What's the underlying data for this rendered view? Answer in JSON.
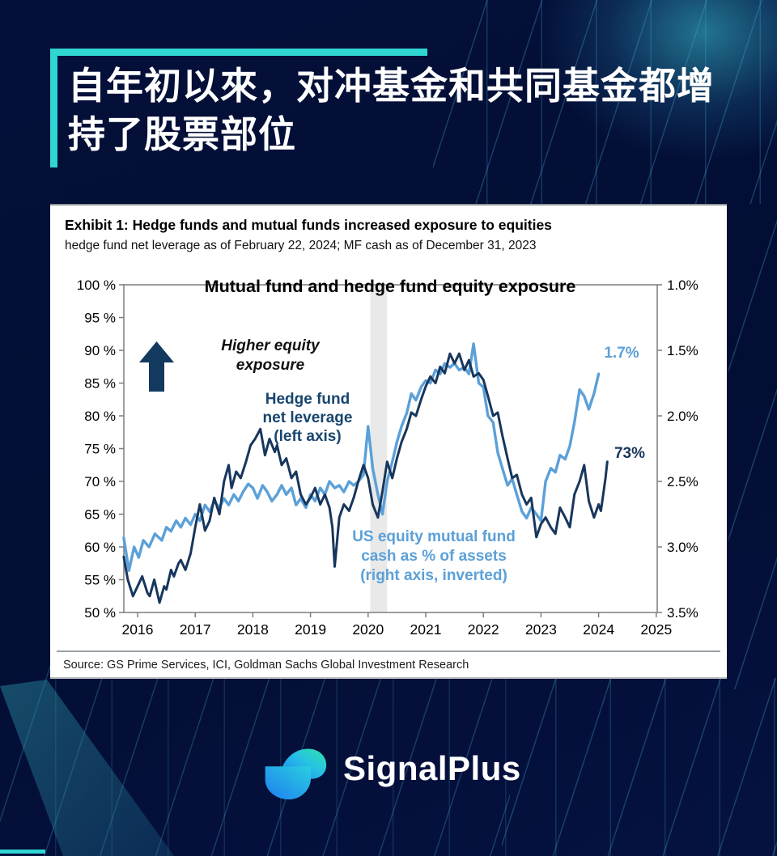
{
  "header": {
    "title_line1": "自年初以來，对冲基金和共同基金都增",
    "title_line2": "持了股票部位"
  },
  "exhibit": {
    "title": "Exhibit 1: Hedge funds and mutual funds increased exposure to equities",
    "subtitle": "hedge fund net leverage as of February 22, 2024; MF cash as of December 31, 2023",
    "source": "Source: GS Prime Services, ICI, Goldman Sachs Global Investment Research"
  },
  "logo": {
    "text": "SignalPlus"
  },
  "colors": {
    "accent_cyan": "#2fd6d2",
    "navy_series": "#17365d",
    "blue_series": "#5ba0d8",
    "recession_band": "#e9e9e9",
    "axis": "#7d7d7d",
    "background": "#04103a"
  },
  "chart_data": {
    "type": "line",
    "title": "Mutual fund and hedge fund equity exposure",
    "left_axis": {
      "tick_labels": [
        "100 %",
        "95 %",
        "90 %",
        "85 %",
        "80 %",
        "75 %",
        "70 %",
        "65 %",
        "60 %",
        "55 %",
        "50 %"
      ],
      "range": [
        50,
        100
      ]
    },
    "right_axis": {
      "tick_labels": [
        "1.0%",
        "1.5%",
        "2.0%",
        "2.5%",
        "3.0%",
        "3.5%"
      ],
      "range": [
        1.0,
        3.5
      ],
      "inverted": true
    },
    "x_axis": {
      "tick_labels": [
        "2016",
        "2017",
        "2018",
        "2019",
        "2020",
        "2021",
        "2022",
        "2023",
        "2024",
        "2025"
      ],
      "tick_years": [
        2016,
        2017,
        2018,
        2019,
        2020,
        2021,
        2022,
        2023,
        2024,
        2025
      ],
      "range": [
        2015.76,
        2025.05
      ]
    },
    "recession_band": {
      "x0": 2020.04,
      "x1": 2020.33
    },
    "annotations": {
      "higher_equity": [
        "Higher equity",
        "exposure"
      ],
      "hedge_fund": [
        "Hedge fund",
        "net leverage",
        "(left axis)"
      ],
      "mf_cash": [
        "US equity mutual fund",
        "cash as % of assets",
        "(right axis, inverted)"
      ],
      "mf_end_value": "1.7%",
      "hedge_end_value": "73%"
    },
    "series": [
      {
        "name": "US equity mutual fund cash as % of assets (right axis, inverted)",
        "axis": "right",
        "color": "#5ba0d8",
        "points": [
          [
            2015.76,
            2.93
          ],
          [
            2015.85,
            3.18
          ],
          [
            2015.94,
            3.0
          ],
          [
            2016.02,
            3.08
          ],
          [
            2016.1,
            2.95
          ],
          [
            2016.2,
            3.0
          ],
          [
            2016.3,
            2.9
          ],
          [
            2016.42,
            2.95
          ],
          [
            2016.5,
            2.85
          ],
          [
            2016.58,
            2.88
          ],
          [
            2016.67,
            2.8
          ],
          [
            2016.75,
            2.85
          ],
          [
            2016.83,
            2.78
          ],
          [
            2016.92,
            2.83
          ],
          [
            2017.0,
            2.75
          ],
          [
            2017.08,
            2.8
          ],
          [
            2017.17,
            2.68
          ],
          [
            2017.25,
            2.73
          ],
          [
            2017.33,
            2.65
          ],
          [
            2017.42,
            2.7
          ],
          [
            2017.5,
            2.63
          ],
          [
            2017.58,
            2.68
          ],
          [
            2017.67,
            2.6
          ],
          [
            2017.75,
            2.65
          ],
          [
            2017.83,
            2.58
          ],
          [
            2017.92,
            2.52
          ],
          [
            2018.0,
            2.55
          ],
          [
            2018.08,
            2.63
          ],
          [
            2018.17,
            2.53
          ],
          [
            2018.25,
            2.58
          ],
          [
            2018.33,
            2.65
          ],
          [
            2018.42,
            2.6
          ],
          [
            2018.5,
            2.53
          ],
          [
            2018.58,
            2.6
          ],
          [
            2018.67,
            2.55
          ],
          [
            2018.75,
            2.68
          ],
          [
            2018.83,
            2.63
          ],
          [
            2018.92,
            2.7
          ],
          [
            2019.0,
            2.6
          ],
          [
            2019.08,
            2.65
          ],
          [
            2019.17,
            2.55
          ],
          [
            2019.25,
            2.6
          ],
          [
            2019.33,
            2.5
          ],
          [
            2019.42,
            2.55
          ],
          [
            2019.5,
            2.53
          ],
          [
            2019.58,
            2.58
          ],
          [
            2019.67,
            2.5
          ],
          [
            2019.75,
            2.53
          ],
          [
            2019.83,
            2.5
          ],
          [
            2019.92,
            2.45
          ],
          [
            2020.0,
            2.08
          ],
          [
            2020.08,
            2.4
          ],
          [
            2020.17,
            2.6
          ],
          [
            2020.25,
            2.75
          ],
          [
            2020.33,
            2.5
          ],
          [
            2020.42,
            2.35
          ],
          [
            2020.5,
            2.2
          ],
          [
            2020.58,
            2.08
          ],
          [
            2020.67,
            1.98
          ],
          [
            2020.75,
            1.83
          ],
          [
            2020.83,
            1.88
          ],
          [
            2020.92,
            1.78
          ],
          [
            2021.0,
            1.73
          ],
          [
            2021.08,
            1.75
          ],
          [
            2021.17,
            1.65
          ],
          [
            2021.25,
            1.68
          ],
          [
            2021.33,
            1.6
          ],
          [
            2021.42,
            1.63
          ],
          [
            2021.5,
            1.6
          ],
          [
            2021.58,
            1.65
          ],
          [
            2021.67,
            1.63
          ],
          [
            2021.75,
            1.68
          ],
          [
            2021.83,
            1.45
          ],
          [
            2021.92,
            1.75
          ],
          [
            2022.0,
            1.78
          ],
          [
            2022.08,
            2.0
          ],
          [
            2022.17,
            2.05
          ],
          [
            2022.25,
            2.28
          ],
          [
            2022.33,
            2.4
          ],
          [
            2022.42,
            2.53
          ],
          [
            2022.5,
            2.48
          ],
          [
            2022.58,
            2.6
          ],
          [
            2022.67,
            2.73
          ],
          [
            2022.75,
            2.78
          ],
          [
            2022.83,
            2.7
          ],
          [
            2022.92,
            2.75
          ],
          [
            2023.0,
            2.8
          ],
          [
            2023.08,
            2.5
          ],
          [
            2023.17,
            2.4
          ],
          [
            2023.25,
            2.43
          ],
          [
            2023.33,
            2.3
          ],
          [
            2023.42,
            2.33
          ],
          [
            2023.5,
            2.23
          ],
          [
            2023.58,
            2.05
          ],
          [
            2023.67,
            1.8
          ],
          [
            2023.75,
            1.85
          ],
          [
            2023.83,
            1.95
          ],
          [
            2023.92,
            1.83
          ],
          [
            2024.0,
            1.68
          ]
        ]
      },
      {
        "name": "Hedge fund net leverage (left axis)",
        "axis": "left",
        "color": "#17365d",
        "points": [
          [
            2015.76,
            58.5
          ],
          [
            2015.83,
            55
          ],
          [
            2015.92,
            52.5
          ],
          [
            2016.0,
            54
          ],
          [
            2016.08,
            55.5
          ],
          [
            2016.17,
            53
          ],
          [
            2016.21,
            52.5
          ],
          [
            2016.29,
            55
          ],
          [
            2016.38,
            51.5
          ],
          [
            2016.46,
            54
          ],
          [
            2016.5,
            53.5
          ],
          [
            2016.58,
            56.5
          ],
          [
            2016.63,
            55.5
          ],
          [
            2016.71,
            57.5
          ],
          [
            2016.75,
            58
          ],
          [
            2016.83,
            56.5
          ],
          [
            2016.92,
            59
          ],
          [
            2017.0,
            63
          ],
          [
            2017.08,
            66.5
          ],
          [
            2017.17,
            62.5
          ],
          [
            2017.25,
            64
          ],
          [
            2017.33,
            67.5
          ],
          [
            2017.42,
            65
          ],
          [
            2017.5,
            70
          ],
          [
            2017.58,
            72.5
          ],
          [
            2017.63,
            69
          ],
          [
            2017.71,
            71.5
          ],
          [
            2017.79,
            70.5
          ],
          [
            2017.88,
            73
          ],
          [
            2017.96,
            75.5
          ],
          [
            2018.04,
            76.5
          ],
          [
            2018.13,
            78
          ],
          [
            2018.21,
            74
          ],
          [
            2018.29,
            76.5
          ],
          [
            2018.38,
            74.5
          ],
          [
            2018.42,
            75.5
          ],
          [
            2018.5,
            72.5
          ],
          [
            2018.58,
            73.5
          ],
          [
            2018.67,
            70.5
          ],
          [
            2018.75,
            71.5
          ],
          [
            2018.83,
            68
          ],
          [
            2018.92,
            66.5
          ],
          [
            2019.0,
            67.5
          ],
          [
            2019.08,
            69
          ],
          [
            2019.17,
            66.5
          ],
          [
            2019.25,
            68
          ],
          [
            2019.33,
            66
          ],
          [
            2019.38,
            63
          ],
          [
            2019.42,
            57
          ],
          [
            2019.5,
            64.5
          ],
          [
            2019.58,
            66.5
          ],
          [
            2019.67,
            65.5
          ],
          [
            2019.75,
            67.5
          ],
          [
            2019.83,
            70
          ],
          [
            2019.92,
            72.5
          ],
          [
            2020.0,
            70.5
          ],
          [
            2020.08,
            66.5
          ],
          [
            2020.17,
            64.5
          ],
          [
            2020.25,
            68.5
          ],
          [
            2020.33,
            73
          ],
          [
            2020.42,
            70.5
          ],
          [
            2020.5,
            73.5
          ],
          [
            2020.58,
            76
          ],
          [
            2020.67,
            78
          ],
          [
            2020.75,
            80.5
          ],
          [
            2020.83,
            80
          ],
          [
            2020.92,
            82.5
          ],
          [
            2021.0,
            84.5
          ],
          [
            2021.08,
            86
          ],
          [
            2021.17,
            85
          ],
          [
            2021.25,
            87.5
          ],
          [
            2021.33,
            86.5
          ],
          [
            2021.42,
            89.5
          ],
          [
            2021.5,
            88
          ],
          [
            2021.58,
            89.5
          ],
          [
            2021.67,
            87
          ],
          [
            2021.75,
            88.5
          ],
          [
            2021.83,
            86
          ],
          [
            2021.92,
            86.5
          ],
          [
            2022.0,
            85.5
          ],
          [
            2022.08,
            83
          ],
          [
            2022.17,
            80
          ],
          [
            2022.25,
            80.5
          ],
          [
            2022.33,
            77
          ],
          [
            2022.42,
            73.5
          ],
          [
            2022.5,
            70.5
          ],
          [
            2022.58,
            71
          ],
          [
            2022.67,
            68
          ],
          [
            2022.75,
            66.5
          ],
          [
            2022.83,
            67.5
          ],
          [
            2022.92,
            61.5
          ],
          [
            2023.0,
            63.5
          ],
          [
            2023.08,
            64.5
          ],
          [
            2023.17,
            63
          ],
          [
            2023.25,
            62
          ],
          [
            2023.33,
            66
          ],
          [
            2023.42,
            64.5
          ],
          [
            2023.5,
            63
          ],
          [
            2023.58,
            68
          ],
          [
            2023.67,
            70
          ],
          [
            2023.75,
            72.5
          ],
          [
            2023.83,
            67
          ],
          [
            2023.92,
            64.5
          ],
          [
            2024.0,
            66.5
          ],
          [
            2024.04,
            65.5
          ],
          [
            2024.08,
            68
          ],
          [
            2024.12,
            70.5
          ],
          [
            2024.15,
            73
          ]
        ]
      }
    ]
  }
}
